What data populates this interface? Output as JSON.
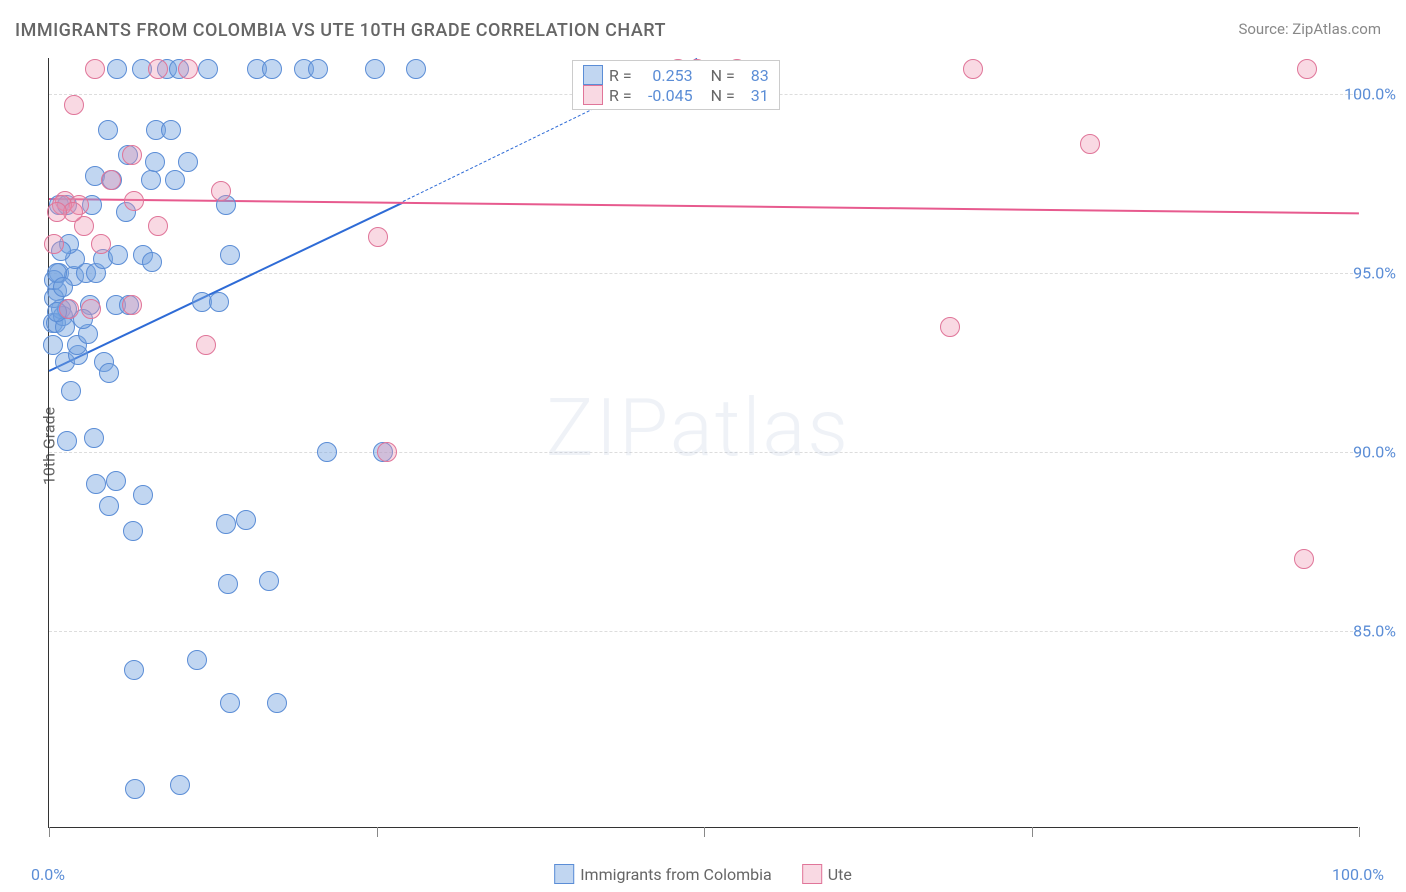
{
  "title": "IMMIGRANTS FROM COLOMBIA VS UTE 10TH GRADE CORRELATION CHART",
  "source": "Source: ZipAtlas.com",
  "y_axis_label": "10th Grade",
  "watermark": "ZIPatlas",
  "xlim": [
    0,
    100
  ],
  "ylim": [
    79.5,
    101
  ],
  "x_ticks": [
    0,
    25,
    50,
    75,
    100
  ],
  "x_tick_labels": [
    "0.0%",
    "",
    "",
    "",
    "100.0%"
  ],
  "y_ticks": [
    85,
    90,
    95,
    100
  ],
  "y_tick_labels": [
    "85.0%",
    "90.0%",
    "95.0%",
    "100.0%"
  ],
  "colors": {
    "blue_fill": "rgba(118,165,224,0.45)",
    "blue_stroke": "#5b8dd6",
    "pink_fill": "rgba(238,145,175,0.35)",
    "pink_stroke": "#e07599",
    "blue_line": "#2e6bd6",
    "pink_line": "#e75a8e",
    "tick_label": "#5b8dd6",
    "title_color": "#666666",
    "grid": "#dddddd"
  },
  "marker_radius": 10,
  "series": [
    {
      "name": "Immigrants from Colombia",
      "color_key": "blue",
      "R": "0.253",
      "N": "83",
      "trend": {
        "x1": 0,
        "y1": 92.3,
        "x2": 27,
        "y2": 97.0,
        "dash_x2": 100,
        "dash_y2": 110
      },
      "points": [
        [
          0.3,
          93.6
        ],
        [
          0.6,
          94.5
        ],
        [
          0.5,
          93.6
        ],
        [
          0.9,
          94.0
        ],
        [
          1.1,
          93.8
        ],
        [
          1.2,
          93.5
        ],
        [
          1.4,
          94.0
        ],
        [
          0.4,
          94.3
        ],
        [
          0.8,
          95.0
        ],
        [
          1.9,
          94.9
        ],
        [
          2.8,
          95.0
        ],
        [
          3.6,
          95.0
        ],
        [
          0.8,
          96.9
        ],
        [
          1.4,
          96.9
        ],
        [
          3.3,
          96.9
        ],
        [
          5.9,
          96.7
        ],
        [
          3.5,
          97.7
        ],
        [
          4.8,
          97.6
        ],
        [
          7.8,
          97.6
        ],
        [
          9.6,
          97.6
        ],
        [
          6.0,
          98.3
        ],
        [
          4.5,
          99.0
        ],
        [
          8.2,
          99.0
        ],
        [
          5.2,
          100.7
        ],
        [
          7.1,
          100.7
        ],
        [
          9.0,
          100.7
        ],
        [
          9.9,
          100.7
        ],
        [
          12.1,
          100.7
        ],
        [
          15.9,
          100.7
        ],
        [
          17.0,
          100.7
        ],
        [
          19.5,
          100.7
        ],
        [
          20.5,
          100.7
        ],
        [
          24.9,
          100.7
        ],
        [
          28.0,
          100.7
        ],
        [
          1.2,
          92.5
        ],
        [
          2.2,
          92.7
        ],
        [
          4.2,
          92.5
        ],
        [
          1.7,
          91.7
        ],
        [
          4.6,
          92.2
        ],
        [
          1.4,
          90.3
        ],
        [
          3.4,
          90.4
        ],
        [
          3.6,
          89.1
        ],
        [
          5.1,
          89.2
        ],
        [
          4.6,
          88.5
        ],
        [
          7.2,
          88.8
        ],
        [
          21.2,
          90.0
        ],
        [
          25.5,
          90.0
        ],
        [
          6.4,
          87.8
        ],
        [
          13.5,
          88.0
        ],
        [
          15.0,
          88.1
        ],
        [
          13.7,
          86.3
        ],
        [
          16.8,
          86.4
        ],
        [
          6.5,
          83.9
        ],
        [
          11.3,
          84.2
        ],
        [
          13.8,
          83.0
        ],
        [
          17.4,
          83.0
        ],
        [
          6.6,
          80.6
        ],
        [
          10.0,
          80.7
        ],
        [
          3.1,
          94.1
        ],
        [
          5.1,
          94.1
        ],
        [
          6.1,
          94.1
        ],
        [
          2.0,
          95.4
        ],
        [
          4.1,
          95.4
        ],
        [
          5.3,
          95.5
        ],
        [
          7.2,
          95.5
        ],
        [
          11.7,
          94.2
        ],
        [
          13.0,
          94.2
        ],
        [
          13.5,
          96.9
        ],
        [
          13.8,
          95.5
        ],
        [
          8.1,
          98.1
        ],
        [
          10.6,
          98.1
        ],
        [
          9.3,
          99.0
        ],
        [
          2.1,
          93.0
        ],
        [
          3.0,
          93.3
        ],
        [
          0.3,
          93.0
        ],
        [
          0.6,
          93.9
        ],
        [
          0.4,
          94.8
        ],
        [
          0.6,
          95.0
        ],
        [
          7.9,
          95.3
        ],
        [
          1.5,
          95.8
        ],
        [
          0.9,
          95.6
        ],
        [
          1.1,
          94.6
        ],
        [
          2.6,
          93.7
        ]
      ]
    },
    {
      "name": "Ute",
      "color_key": "pink",
      "R": "-0.045",
      "N": "31",
      "trend": {
        "x1": 0,
        "y1": 97.1,
        "x2": 100,
        "y2": 96.7
      },
      "points": [
        [
          1.2,
          97.0
        ],
        [
          2.3,
          96.9
        ],
        [
          1.5,
          94.0
        ],
        [
          0.4,
          95.8
        ],
        [
          3.2,
          94.0
        ],
        [
          6.3,
          94.1
        ],
        [
          1.0,
          96.9
        ],
        [
          4.7,
          97.6
        ],
        [
          6.3,
          98.3
        ],
        [
          6.5,
          97.0
        ],
        [
          1.9,
          99.7
        ],
        [
          3.5,
          100.7
        ],
        [
          8.3,
          100.7
        ],
        [
          10.6,
          100.7
        ],
        [
          13.1,
          97.3
        ],
        [
          12.0,
          93.0
        ],
        [
          25.1,
          96.0
        ],
        [
          48.0,
          100.7
        ],
        [
          49.5,
          100.7
        ],
        [
          52.5,
          100.7
        ],
        [
          70.5,
          100.7
        ],
        [
          68.8,
          93.5
        ],
        [
          79.5,
          98.6
        ],
        [
          96.0,
          100.7
        ],
        [
          95.8,
          87.0
        ],
        [
          25.8,
          90.0
        ],
        [
          8.3,
          96.3
        ],
        [
          4.0,
          95.8
        ],
        [
          2.7,
          96.3
        ],
        [
          1.8,
          96.7
        ],
        [
          0.6,
          96.7
        ]
      ]
    }
  ],
  "legend_box": {
    "labels": {
      "R": "R =",
      "N": "N ="
    }
  },
  "bottom_legend": {
    "items": [
      "Immigrants from Colombia",
      "Ute"
    ]
  }
}
